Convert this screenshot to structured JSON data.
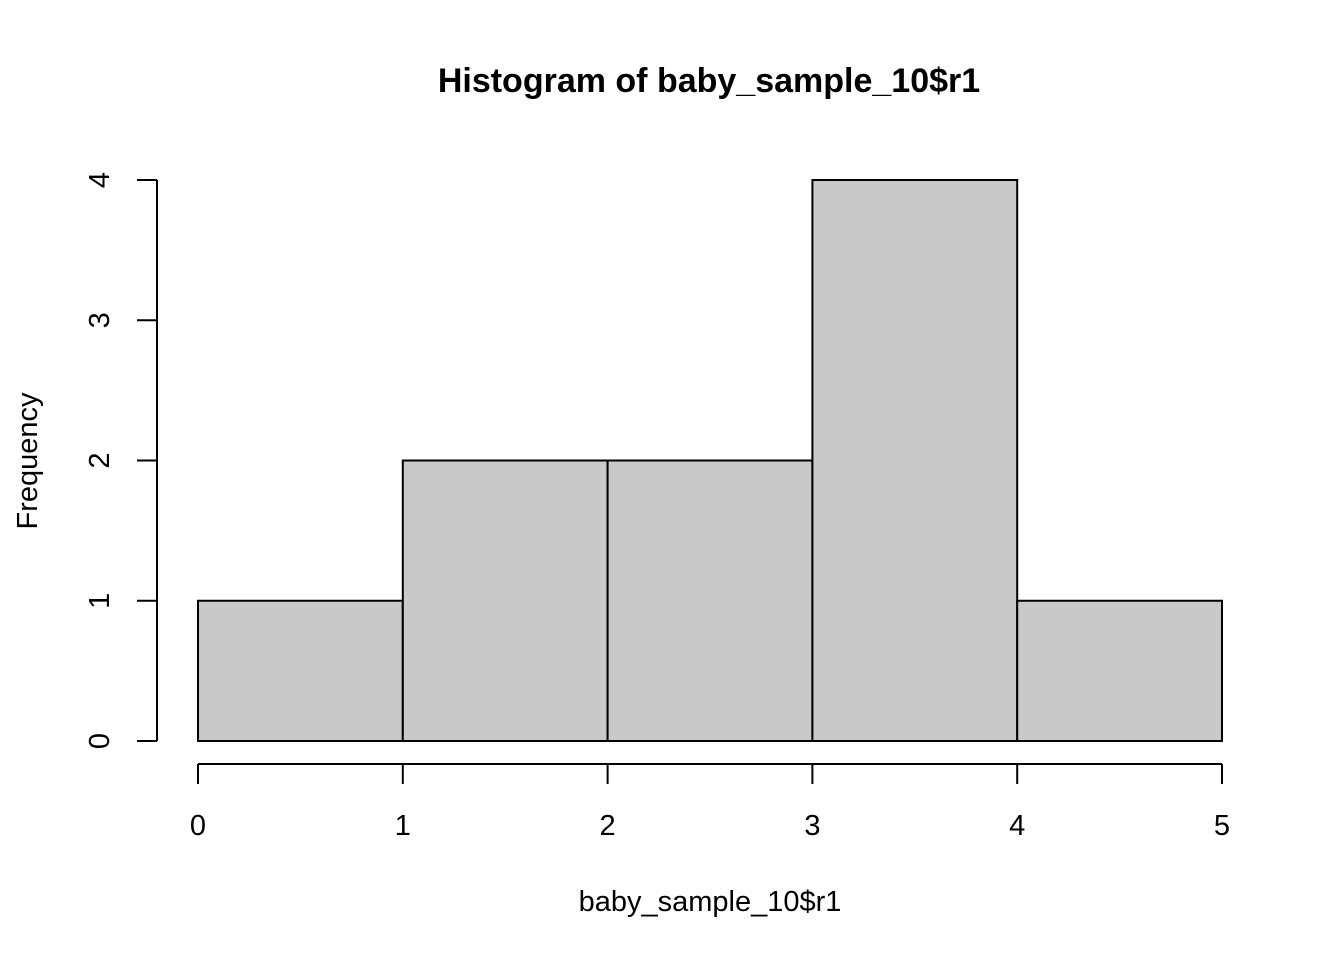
{
  "chart_data": {
    "type": "bar",
    "subtype": "histogram",
    "title": "Histogram of baby_sample_10$r1",
    "xlabel": "baby_sample_10$r1",
    "ylabel": "Frequency",
    "bins": [
      {
        "from": 0,
        "to": 1,
        "count": 1
      },
      {
        "from": 1,
        "to": 2,
        "count": 2
      },
      {
        "from": 2,
        "to": 3,
        "count": 2
      },
      {
        "from": 3,
        "to": 4,
        "count": 4
      },
      {
        "from": 4,
        "to": 5,
        "count": 1
      }
    ],
    "xlim": [
      0,
      5
    ],
    "ylim": [
      0,
      4
    ],
    "xticks": [
      0,
      1,
      2,
      3,
      4,
      5
    ],
    "yticks": [
      0,
      1,
      2,
      3,
      4
    ],
    "grid": false,
    "bar_fill": "#c9c9c9",
    "bar_stroke": "#000000"
  }
}
